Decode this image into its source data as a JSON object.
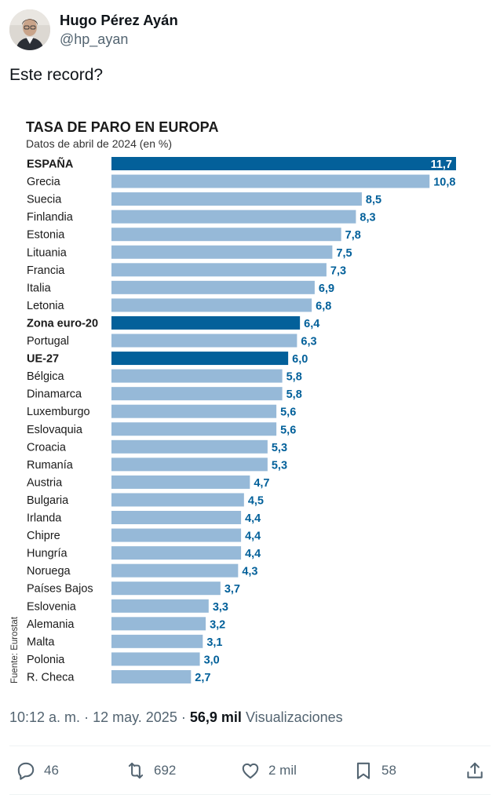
{
  "author": {
    "name": "Hugo Pérez Ayán",
    "handle": "@hp_ayan"
  },
  "tweet": {
    "text": "Este record?",
    "time": "10:12 a. m.",
    "separator": "·",
    "date": "12 may. 2025",
    "views_count": "56,9 mil",
    "views_label": "Visualizaciones"
  },
  "actions": {
    "replies": "46",
    "reposts": "692",
    "likes": "2 mil",
    "bookmarks": "58"
  },
  "colors": {
    "highlight_bar": "#03609a",
    "regular_bar": "#96b9d8",
    "value_label": "#02609a"
  },
  "chart_data": {
    "type": "bar",
    "orientation": "horizontal",
    "title": "TASA DE PARO EN EUROPA",
    "subtitle": "Datos de abril de 2024 (en %)",
    "source": "Fuente: Eurostat",
    "xlim": [
      0,
      11.7
    ],
    "categories": [
      "ESPAÑA",
      "Grecia",
      "Suecia",
      "Finlandia",
      "Estonia",
      "Lituania",
      "Francia",
      "Italia",
      "Letonia",
      "Zona euro-20",
      "Portugal",
      "UE-27",
      "Bélgica",
      "Dinamarca",
      "Luxemburgo",
      "Eslovaquia",
      "Croacia",
      "Rumanía",
      "Austria",
      "Bulgaria",
      "Irlanda",
      "Chipre",
      "Hungría",
      "Noruega",
      "Países Bajos",
      "Eslovenia",
      "Alemania",
      "Malta",
      "Polonia",
      "R. Checa"
    ],
    "values": [
      11.7,
      10.8,
      8.5,
      8.3,
      7.8,
      7.5,
      7.3,
      6.9,
      6.8,
      6.4,
      6.3,
      6.0,
      5.8,
      5.8,
      5.6,
      5.6,
      5.3,
      5.3,
      4.7,
      4.5,
      4.4,
      4.4,
      4.4,
      4.3,
      3.7,
      3.3,
      3.2,
      3.1,
      3.0,
      2.7
    ],
    "value_labels": [
      "11,7",
      "10,8",
      "8,5",
      "8,3",
      "7,8",
      "7,5",
      "7,3",
      "6,9",
      "6,8",
      "6,4",
      "6,3",
      "6,0",
      "5,8",
      "5,8",
      "5,6",
      "5,6",
      "5,3",
      "5,3",
      "4,7",
      "4,5",
      "4,4",
      "4,4",
      "4,4",
      "4,3",
      "3,7",
      "3,3",
      "3,2",
      "3,1",
      "3,0",
      "2,7"
    ],
    "highlighted": [
      "ESPAÑA",
      "Zona euro-20",
      "UE-27"
    ]
  }
}
